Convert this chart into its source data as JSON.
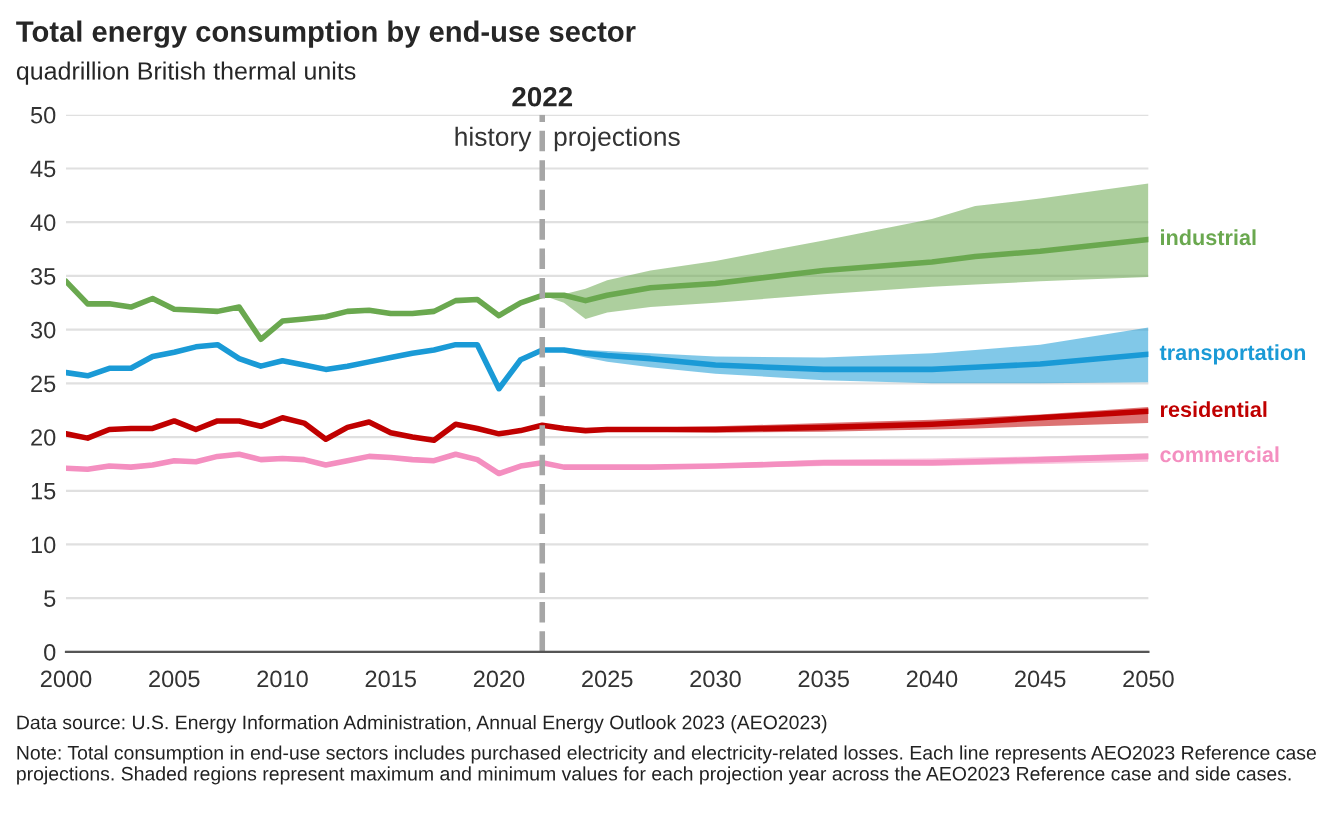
{
  "chart_data": {
    "type": "line",
    "title": "Total energy consumption by end-use sector",
    "subtitle": "quadrillion British thermal units",
    "x": [
      2000,
      2001,
      2002,
      2003,
      2004,
      2005,
      2006,
      2007,
      2008,
      2009,
      2010,
      2011,
      2012,
      2013,
      2014,
      2015,
      2016,
      2017,
      2018,
      2019,
      2020,
      2021,
      2022,
      2023,
      2024,
      2025,
      2027,
      2030,
      2035,
      2040,
      2042,
      2045,
      2050
    ],
    "series": [
      {
        "name": "industrial",
        "color": "#6aa84f",
        "values": [
          34.5,
          32.4,
          32.4,
          32.1,
          32.9,
          31.9,
          31.8,
          31.7,
          32.1,
          29.1,
          30.8,
          31.0,
          31.2,
          31.7,
          31.8,
          31.5,
          31.5,
          31.7,
          32.7,
          32.8,
          31.3,
          32.5,
          33.2,
          33.2,
          32.7,
          33.2,
          33.9,
          34.3,
          35.5,
          36.3,
          36.8,
          37.3,
          38.4
        ],
        "lower": [
          null,
          null,
          null,
          null,
          null,
          null,
          null,
          null,
          null,
          null,
          null,
          null,
          null,
          null,
          null,
          null,
          null,
          null,
          null,
          null,
          null,
          null,
          33.2,
          32.5,
          31.0,
          31.6,
          32.1,
          32.5,
          33.3,
          34.0,
          34.2,
          34.5,
          34.9
        ],
        "upper": [
          null,
          null,
          null,
          null,
          null,
          null,
          null,
          null,
          null,
          null,
          null,
          null,
          null,
          null,
          null,
          null,
          null,
          null,
          null,
          null,
          null,
          null,
          33.2,
          33.3,
          33.8,
          34.6,
          35.5,
          36.4,
          38.3,
          40.3,
          41.5,
          42.2,
          43.6
        ]
      },
      {
        "name": "transportation",
        "color": "#1a9ad6",
        "values": [
          26.0,
          25.7,
          26.4,
          26.4,
          27.5,
          27.9,
          28.4,
          28.6,
          27.3,
          26.6,
          27.1,
          26.7,
          26.3,
          26.6,
          27.0,
          27.4,
          27.8,
          28.1,
          28.6,
          28.6,
          24.5,
          27.2,
          28.1,
          28.1,
          27.8,
          27.6,
          27.3,
          26.7,
          26.3,
          26.3,
          26.5,
          26.8,
          27.7
        ],
        "lower": [
          null,
          null,
          null,
          null,
          null,
          null,
          null,
          null,
          null,
          null,
          null,
          null,
          null,
          null,
          null,
          null,
          null,
          null,
          null,
          null,
          null,
          null,
          28.1,
          27.9,
          27.4,
          27.0,
          26.5,
          25.9,
          25.3,
          25.0,
          25.0,
          25.0,
          25.1
        ],
        "upper": [
          null,
          null,
          null,
          null,
          null,
          null,
          null,
          null,
          null,
          null,
          null,
          null,
          null,
          null,
          null,
          null,
          null,
          null,
          null,
          null,
          null,
          null,
          28.1,
          28.2,
          28.1,
          28.0,
          27.8,
          27.5,
          27.4,
          27.8,
          28.1,
          28.6,
          30.2
        ]
      },
      {
        "name": "residential",
        "color": "#c00000",
        "values": [
          20.3,
          19.9,
          20.7,
          20.8,
          20.8,
          21.5,
          20.7,
          21.5,
          21.5,
          21.0,
          21.8,
          21.3,
          19.8,
          20.9,
          21.4,
          20.4,
          20.0,
          19.7,
          21.2,
          20.8,
          20.3,
          20.6,
          21.1,
          20.8,
          20.6,
          20.7,
          20.7,
          20.7,
          20.9,
          21.2,
          21.4,
          21.8,
          22.4
        ],
        "lower": [
          null,
          null,
          null,
          null,
          null,
          null,
          null,
          null,
          null,
          null,
          null,
          null,
          null,
          null,
          null,
          null,
          null,
          null,
          null,
          null,
          null,
          null,
          21.1,
          20.7,
          20.5,
          20.5,
          20.5,
          20.4,
          20.5,
          20.7,
          20.8,
          21.0,
          21.3
        ],
        "upper": [
          null,
          null,
          null,
          null,
          null,
          null,
          null,
          null,
          null,
          null,
          null,
          null,
          null,
          null,
          null,
          null,
          null,
          null,
          null,
          null,
          null,
          null,
          21.1,
          20.9,
          20.8,
          20.8,
          20.9,
          21.0,
          21.3,
          21.6,
          21.8,
          22.1,
          22.8
        ]
      },
      {
        "name": "commercial",
        "color": "#f48fc0",
        "values": [
          17.1,
          17.0,
          17.3,
          17.2,
          17.4,
          17.8,
          17.7,
          18.2,
          18.4,
          17.9,
          18.0,
          17.9,
          17.4,
          17.8,
          18.2,
          18.1,
          17.9,
          17.8,
          18.4,
          17.9,
          16.6,
          17.3,
          17.6,
          17.2,
          17.2,
          17.2,
          17.2,
          17.3,
          17.6,
          17.6,
          17.7,
          17.9,
          18.2
        ],
        "lower": [
          null,
          null,
          null,
          null,
          null,
          null,
          null,
          null,
          null,
          null,
          null,
          null,
          null,
          null,
          null,
          null,
          null,
          null,
          null,
          null,
          null,
          null,
          17.6,
          17.1,
          17.0,
          17.0,
          17.0,
          17.1,
          17.3,
          17.3,
          17.4,
          17.5,
          17.7
        ],
        "upper": [
          null,
          null,
          null,
          null,
          null,
          null,
          null,
          null,
          null,
          null,
          null,
          null,
          null,
          null,
          null,
          null,
          null,
          null,
          null,
          null,
          null,
          null,
          17.6,
          17.3,
          17.3,
          17.3,
          17.4,
          17.5,
          17.9,
          18.0,
          18.1,
          18.2,
          18.5
        ]
      }
    ],
    "xlim": [
      2000,
      2050
    ],
    "xticks": [
      2000,
      2005,
      2010,
      2015,
      2020,
      2025,
      2030,
      2035,
      2040,
      2045,
      2050
    ],
    "ylim": [
      0,
      50
    ],
    "yticks": [
      0,
      5,
      10,
      15,
      20,
      25,
      30,
      35,
      40,
      45,
      50
    ],
    "grid": "y",
    "legend": false,
    "marker": "none",
    "line_style": "solid",
    "ref_lines": [
      {
        "axis": "x",
        "value": 2022,
        "label": "2022",
        "color": "#a6a6a6",
        "line_style": "dashed"
      }
    ],
    "annotations": [
      "history",
      "projections",
      "Data source: U.S. Energy Information Administration, Annual Energy Outlook 2023 (AEO2023)",
      "Note: Total consumption in end-use sectors includes purchased electricity and electricity-related losses. Each line represents AEO2023 Reference case projections. Shaded regions represent maximum and minimum values for each projection year across the AEO2023 Reference case and side cases."
    ]
  }
}
